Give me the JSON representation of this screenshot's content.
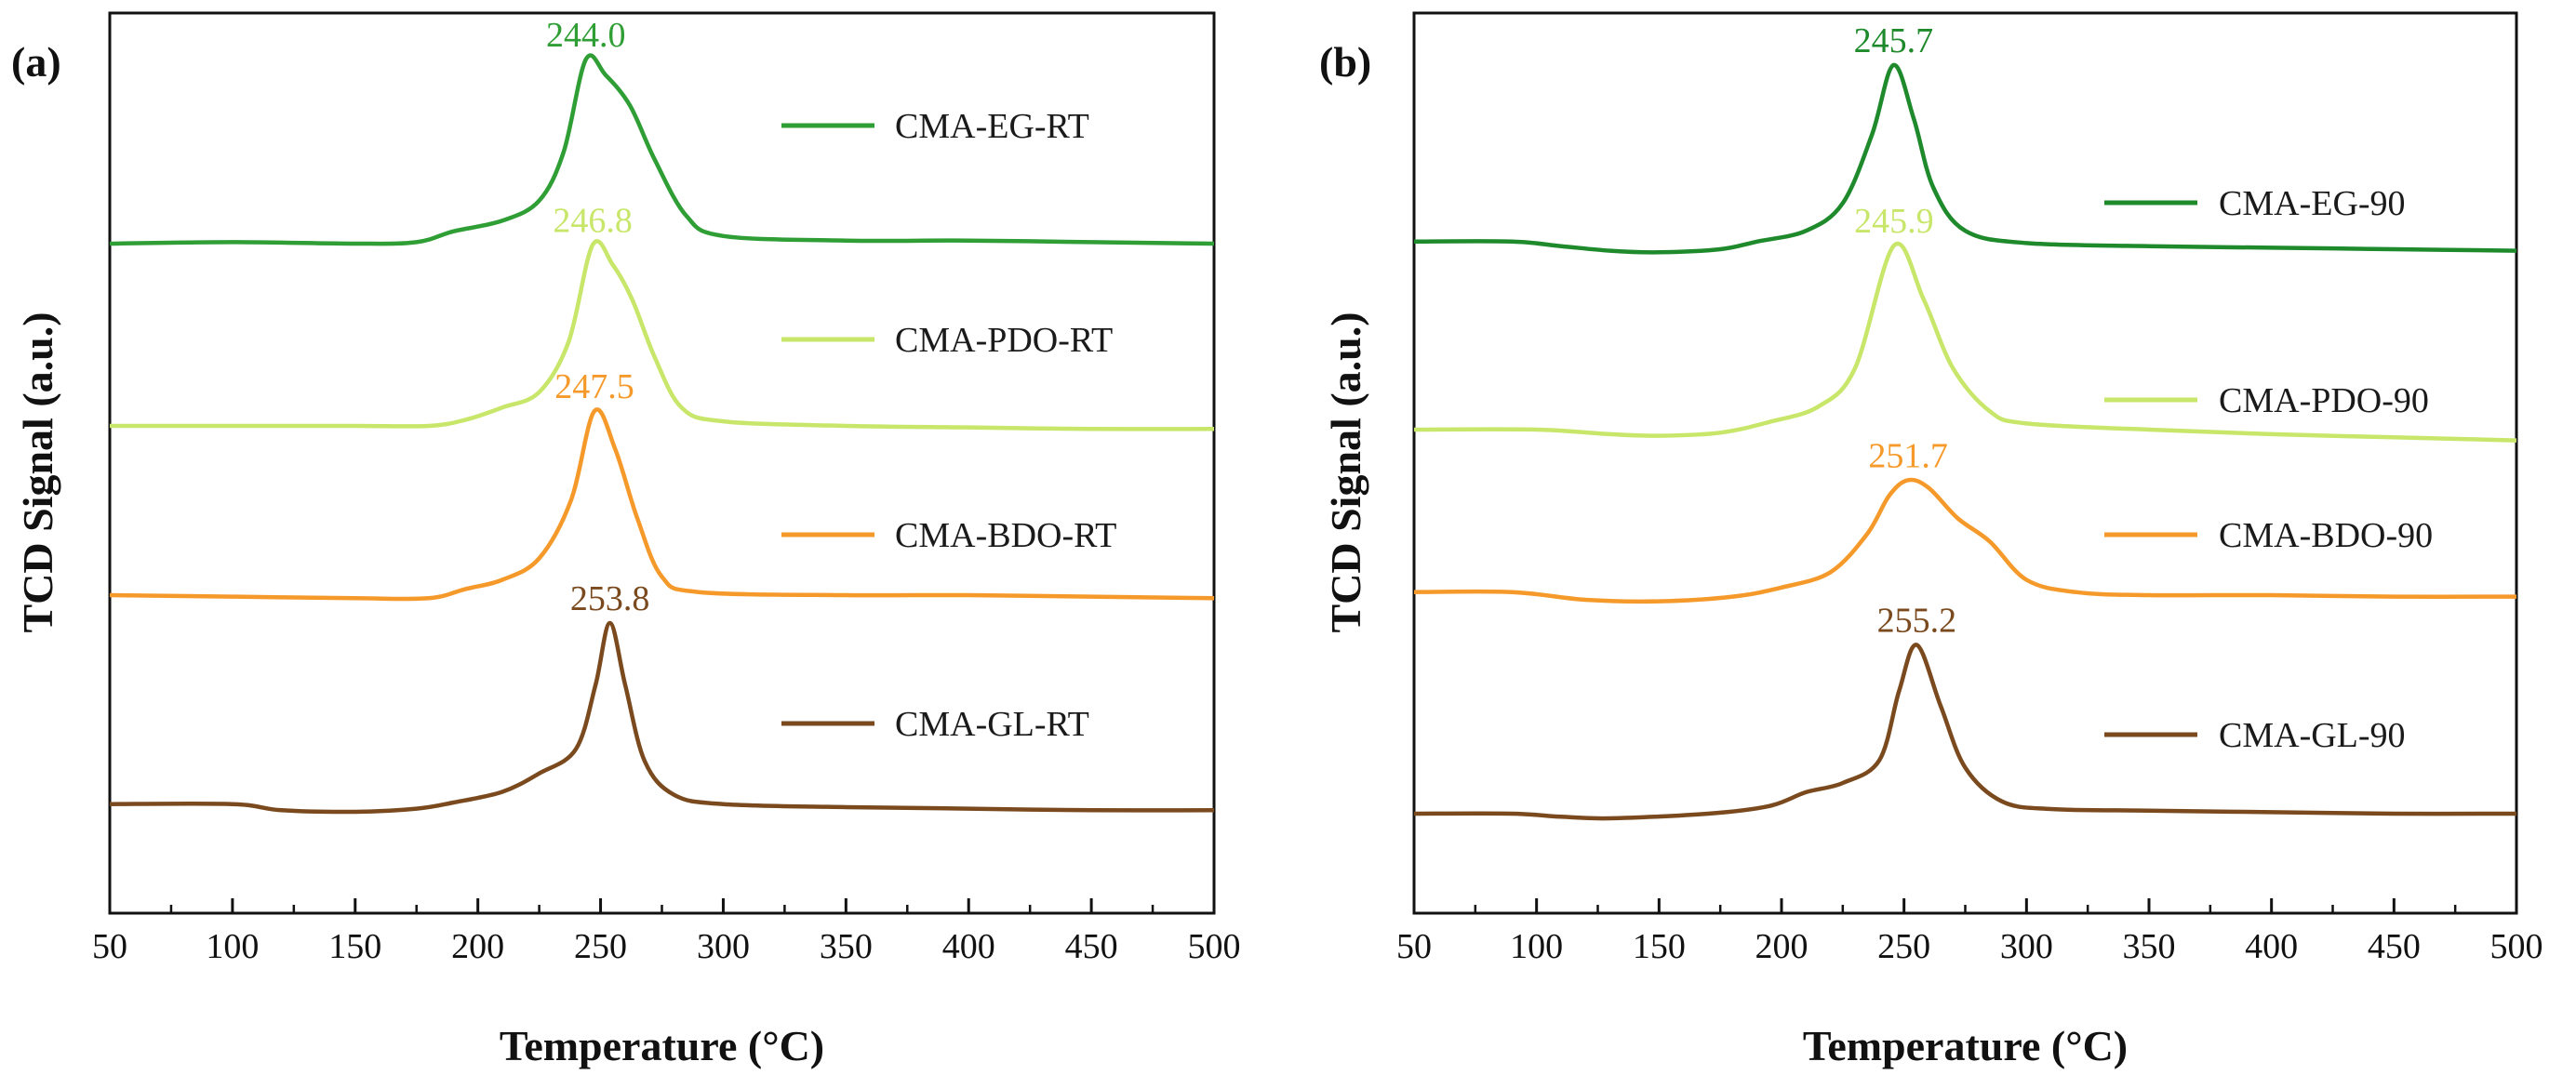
{
  "figure": {
    "description_free": true
  },
  "chart_data": [
    {
      "type": "line",
      "panel_label": "(a)",
      "xlabel": "Temperature (°C)",
      "ylabel": "TCD Signal (a.u.)",
      "xlim": [
        50,
        500
      ],
      "xticks": [
        "50",
        "100",
        "150",
        "200",
        "250",
        "300",
        "350",
        "400",
        "450",
        "500"
      ],
      "y_ticks_shown": false,
      "grid": false,
      "legend": "right-inside",
      "series": [
        {
          "name": "CMA-EG-RT",
          "color": "#2e9e35",
          "offset": 3,
          "peak_label": "244.0",
          "peak_x": 244.0,
          "points": [
            [
              50,
              0.0
            ],
            [
              100,
              0.01
            ],
            [
              150,
              0.0
            ],
            [
              175,
              0.01
            ],
            [
              190,
              0.08
            ],
            [
              210,
              0.15
            ],
            [
              225,
              0.28
            ],
            [
              235,
              0.6
            ],
            [
              244,
              1.2
            ],
            [
              252,
              1.1
            ],
            [
              262,
              0.9
            ],
            [
              272,
              0.55
            ],
            [
              285,
              0.18
            ],
            [
              300,
              0.05
            ],
            [
              350,
              0.02
            ],
            [
              400,
              0.02
            ],
            [
              450,
              0.01
            ],
            [
              500,
              0.0
            ]
          ]
        },
        {
          "name": "CMA-PDO-RT",
          "color": "#c8e66a",
          "offset": 2,
          "peak_label": "246.8",
          "peak_x": 246.8,
          "points": [
            [
              50,
              0.0
            ],
            [
              100,
              0.0
            ],
            [
              150,
              0.0
            ],
            [
              180,
              0.0
            ],
            [
              195,
              0.04
            ],
            [
              210,
              0.12
            ],
            [
              225,
              0.22
            ],
            [
              237,
              0.55
            ],
            [
              246.8,
              1.18
            ],
            [
              255,
              1.05
            ],
            [
              263,
              0.82
            ],
            [
              272,
              0.45
            ],
            [
              283,
              0.12
            ],
            [
              300,
              0.03
            ],
            [
              350,
              0.0
            ],
            [
              400,
              -0.01
            ],
            [
              450,
              -0.02
            ],
            [
              500,
              -0.02
            ]
          ]
        },
        {
          "name": "CMA-BDO-RT",
          "color": "#f59a2a",
          "offset": 1,
          "peak_label": "247.5",
          "peak_x": 247.5,
          "points": [
            [
              50,
              0.0
            ],
            [
              100,
              -0.01
            ],
            [
              150,
              -0.02
            ],
            [
              180,
              -0.02
            ],
            [
              195,
              0.04
            ],
            [
              210,
              0.1
            ],
            [
              225,
              0.24
            ],
            [
              238,
              0.62
            ],
            [
              247.5,
              1.2
            ],
            [
              256,
              0.95
            ],
            [
              265,
              0.5
            ],
            [
              275,
              0.12
            ],
            [
              290,
              0.02
            ],
            [
              350,
              0.0
            ],
            [
              400,
              0.0
            ],
            [
              450,
              -0.01
            ],
            [
              500,
              -0.02
            ]
          ]
        },
        {
          "name": "CMA-GL-RT",
          "color": "#7a4a1e",
          "offset": 0,
          "peak_label": "253.8",
          "peak_x": 253.8,
          "points": [
            [
              50,
              0.02
            ],
            [
              100,
              0.02
            ],
            [
              120,
              -0.02
            ],
            [
              150,
              -0.03
            ],
            [
              175,
              -0.01
            ],
            [
              190,
              0.03
            ],
            [
              210,
              0.1
            ],
            [
              225,
              0.22
            ],
            [
              240,
              0.38
            ],
            [
              248,
              0.8
            ],
            [
              253.8,
              1.2
            ],
            [
              260,
              0.8
            ],
            [
              268,
              0.3
            ],
            [
              280,
              0.08
            ],
            [
              300,
              0.02
            ],
            [
              350,
              0.0
            ],
            [
              400,
              -0.01
            ],
            [
              450,
              -0.02
            ],
            [
              500,
              -0.02
            ]
          ]
        }
      ]
    },
    {
      "type": "line",
      "panel_label": "(b)",
      "xlabel": "Temperature (°C)",
      "ylabel": "TCD Signal (a.u.)",
      "xlim": [
        50,
        500
      ],
      "xticks": [
        "50",
        "100",
        "150",
        "200",
        "250",
        "300",
        "350",
        "400",
        "450",
        "500"
      ],
      "y_ticks_shown": false,
      "grid": false,
      "legend": "right-inside",
      "series": [
        {
          "name": "CMA-EG-90",
          "color": "#1f8a2c",
          "offset": 3,
          "peak_label": "245.7",
          "peak_x": 245.7,
          "points": [
            [
              50,
              0.05
            ],
            [
              90,
              0.05
            ],
            [
              110,
              0.02
            ],
            [
              130,
              -0.01
            ],
            [
              150,
              -0.02
            ],
            [
              175,
              0.0
            ],
            [
              190,
              0.05
            ],
            [
              210,
              0.12
            ],
            [
              225,
              0.3
            ],
            [
              237,
              0.75
            ],
            [
              245.7,
              1.2
            ],
            [
              254,
              0.85
            ],
            [
              262,
              0.4
            ],
            [
              275,
              0.12
            ],
            [
              300,
              0.04
            ],
            [
              350,
              0.02
            ],
            [
              400,
              0.01
            ],
            [
              450,
              0.0
            ],
            [
              500,
              -0.01
            ]
          ]
        },
        {
          "name": "CMA-PDO-90",
          "color": "#c8e66a",
          "offset": 2,
          "peak_label": "245.9",
          "peak_x": 245.9,
          "points": [
            [
              50,
              0.0
            ],
            [
              100,
              0.0
            ],
            [
              130,
              -0.03
            ],
            [
              150,
              -0.04
            ],
            [
              175,
              -0.02
            ],
            [
              195,
              0.05
            ],
            [
              215,
              0.15
            ],
            [
              230,
              0.4
            ],
            [
              245.9,
              1.2
            ],
            [
              258,
              0.85
            ],
            [
              270,
              0.4
            ],
            [
              285,
              0.12
            ],
            [
              300,
              0.04
            ],
            [
              350,
              0.0
            ],
            [
              400,
              -0.03
            ],
            [
              450,
              -0.05
            ],
            [
              500,
              -0.07
            ]
          ]
        },
        {
          "name": "CMA-BDO-90",
          "color": "#f59a2a",
          "offset": 1,
          "peak_label": "251.7",
          "peak_x": 251.7,
          "points": [
            [
              50,
              0.02
            ],
            [
              90,
              0.02
            ],
            [
              120,
              -0.03
            ],
            [
              150,
              -0.04
            ],
            [
              180,
              -0.01
            ],
            [
              200,
              0.05
            ],
            [
              220,
              0.15
            ],
            [
              235,
              0.4
            ],
            [
              244,
              0.65
            ],
            [
              251.7,
              0.75
            ],
            [
              260,
              0.7
            ],
            [
              272,
              0.5
            ],
            [
              285,
              0.35
            ],
            [
              300,
              0.1
            ],
            [
              320,
              0.02
            ],
            [
              350,
              0.0
            ],
            [
              400,
              0.0
            ],
            [
              450,
              -0.01
            ],
            [
              500,
              -0.01
            ]
          ]
        },
        {
          "name": "CMA-GL-90",
          "color": "#7a4a1e",
          "offset": 0,
          "peak_label": "255.2",
          "peak_x": 255.2,
          "points": [
            [
              50,
              0.0
            ],
            [
              90,
              0.0
            ],
            [
              110,
              -0.02
            ],
            [
              130,
              -0.03
            ],
            [
              170,
              0.0
            ],
            [
              195,
              0.05
            ],
            [
              210,
              0.14
            ],
            [
              225,
              0.2
            ],
            [
              240,
              0.35
            ],
            [
              248,
              0.8
            ],
            [
              255.2,
              1.1
            ],
            [
              265,
              0.7
            ],
            [
              275,
              0.3
            ],
            [
              290,
              0.08
            ],
            [
              310,
              0.03
            ],
            [
              350,
              0.02
            ],
            [
              400,
              0.01
            ],
            [
              450,
              0.0
            ],
            [
              500,
              0.0
            ]
          ]
        }
      ]
    }
  ]
}
